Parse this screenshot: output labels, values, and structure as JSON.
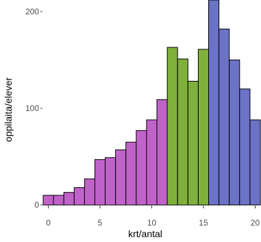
{
  "chart_data": {
    "type": "bar",
    "xlabel": "krt/antal",
    "ylabel": "oppilaita/elever",
    "xlim": [
      -0.5,
      20.5
    ],
    "ylim": [
      0,
      212
    ],
    "x_ticks": [
      0,
      5,
      10,
      15,
      20
    ],
    "y_ticks": [
      0,
      100,
      200
    ],
    "grid": false,
    "legend": "none",
    "bars": [
      {
        "x": 0,
        "value": 10,
        "group": 1
      },
      {
        "x": 1,
        "value": 10,
        "group": 1
      },
      {
        "x": 2,
        "value": 13,
        "group": 1
      },
      {
        "x": 3,
        "value": 18,
        "group": 1
      },
      {
        "x": 4,
        "value": 27,
        "group": 1
      },
      {
        "x": 5,
        "value": 47,
        "group": 1
      },
      {
        "x": 6,
        "value": 49,
        "group": 1
      },
      {
        "x": 7,
        "value": 57,
        "group": 1
      },
      {
        "x": 8,
        "value": 65,
        "group": 1
      },
      {
        "x": 9,
        "value": 77,
        "group": 1
      },
      {
        "x": 10,
        "value": 88,
        "group": 1
      },
      {
        "x": 11,
        "value": 109,
        "group": 1
      },
      {
        "x": 12,
        "value": 163,
        "group": 2
      },
      {
        "x": 13,
        "value": 151,
        "group": 2
      },
      {
        "x": 14,
        "value": 128,
        "group": 2
      },
      {
        "x": 15,
        "value": 161,
        "group": 2
      },
      {
        "x": 16,
        "value": 212,
        "group": 3
      },
      {
        "x": 17,
        "value": 182,
        "group": 3
      },
      {
        "x": 18,
        "value": 150,
        "group": 3
      },
      {
        "x": 19,
        "value": 120,
        "group": 3
      },
      {
        "x": 20,
        "value": 88,
        "group": 3
      }
    ],
    "group_colors": {
      "1": "#c063c9",
      "2": "#7fb03c",
      "3": "#6b73c6"
    }
  }
}
